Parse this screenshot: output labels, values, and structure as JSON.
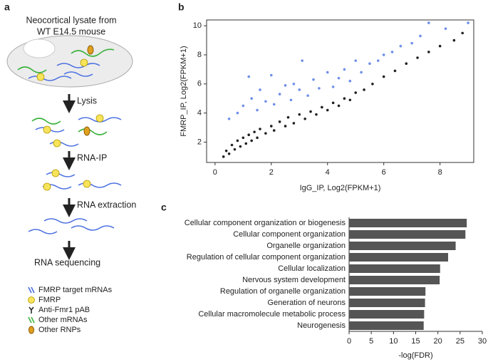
{
  "diagram": {
    "label": "a",
    "title_lines": [
      "Neocortical lysate from",
      "WT E14.5 mouse"
    ],
    "steps": [
      "Lysis",
      "RNA-IP",
      "RNA extraction",
      "RNA sequencing"
    ],
    "legend": [
      "FMRP target mRNAs",
      "FMRP",
      "Anti-Fmr1 pAB",
      "Other mRNAs",
      "Other RNPs"
    ]
  },
  "chart_data": [
    {
      "type": "scatter",
      "label": "b",
      "x_label": "IgG_IP, Log2(FPKM+1)",
      "y_label": "FMRP_IP, Log2(FPKM+1)",
      "xlim": [
        -0.3,
        9.2
      ],
      "ylim": [
        0.6,
        10.4
      ],
      "xticks": [
        0,
        2,
        4,
        6,
        8
      ],
      "yticks": [
        2,
        4,
        6,
        8,
        10
      ],
      "series": [
        {
          "color": "#222222",
          "x": [
            0.3,
            0.4,
            0.5,
            0.6,
            0.7,
            0.8,
            0.9,
            1.0,
            1.1,
            1.2,
            1.3,
            1.4,
            1.5,
            1.6,
            1.8,
            2.0,
            2.1,
            2.3,
            2.5,
            2.6,
            2.8,
            3.0,
            3.2,
            3.4,
            3.6,
            3.8,
            4.0,
            4.2,
            4.4,
            4.6,
            4.8,
            5.0,
            5.3,
            5.6,
            6.0,
            6.4,
            6.8,
            7.2,
            7.6,
            8.0,
            8.5,
            8.8
          ],
          "values": [
            1.0,
            1.4,
            1.2,
            1.8,
            1.5,
            2.1,
            1.7,
            2.3,
            1.9,
            2.5,
            2.1,
            2.7,
            2.3,
            2.9,
            2.6,
            3.1,
            2.8,
            3.4,
            3.1,
            3.7,
            3.3,
            3.9,
            3.6,
            4.1,
            3.9,
            4.4,
            4.2,
            4.7,
            4.5,
            5.0,
            4.9,
            5.4,
            5.6,
            6.0,
            6.5,
            6.9,
            7.4,
            7.8,
            8.2,
            8.6,
            9.0,
            9.5
          ]
        },
        {
          "color": "#6f8fe8",
          "x": [
            0.5,
            0.8,
            1.0,
            1.2,
            1.3,
            1.5,
            1.6,
            1.8,
            2.0,
            2.1,
            2.3,
            2.5,
            2.7,
            2.8,
            3.0,
            3.1,
            3.3,
            3.5,
            3.7,
            4.0,
            4.2,
            4.4,
            4.6,
            4.8,
            5.0,
            5.2,
            5.5,
            5.8,
            6.0,
            6.3,
            6.6,
            7.0,
            7.3,
            7.6,
            8.2,
            9.0
          ],
          "values": [
            3.6,
            4.0,
            4.5,
            6.5,
            5.0,
            4.2,
            5.6,
            4.8,
            6.6,
            4.6,
            5.3,
            5.9,
            4.9,
            6.0,
            5.6,
            7.6,
            5.2,
            6.3,
            5.7,
            6.8,
            5.8,
            6.4,
            7.0,
            6.2,
            7.6,
            6.8,
            7.4,
            7.6,
            8.0,
            8.2,
            8.6,
            8.8,
            9.3,
            10.2,
            9.8,
            10.2
          ]
        }
      ]
    },
    {
      "type": "barh",
      "label": "c",
      "x_label": "-log(FDR)",
      "color": "#555555",
      "xlim": [
        0,
        30
      ],
      "xticks": [
        0,
        5,
        10,
        15,
        20,
        25,
        30
      ],
      "categories": [
        "Cellular component organization or biogenesis",
        "Cellular component organization",
        "Organelle organization",
        "Regulation of cellular component organization",
        "Cellular localization",
        "Nervous system development",
        "Regulation of organelle organization",
        "Generation of neurons",
        "Cellular macromolecule metabolic process",
        "Neurogenesis"
      ],
      "values": [
        26.5,
        26.2,
        24.0,
        22.3,
        20.5,
        20.4,
        17.2,
        17.1,
        16.9,
        16.8
      ]
    }
  ]
}
